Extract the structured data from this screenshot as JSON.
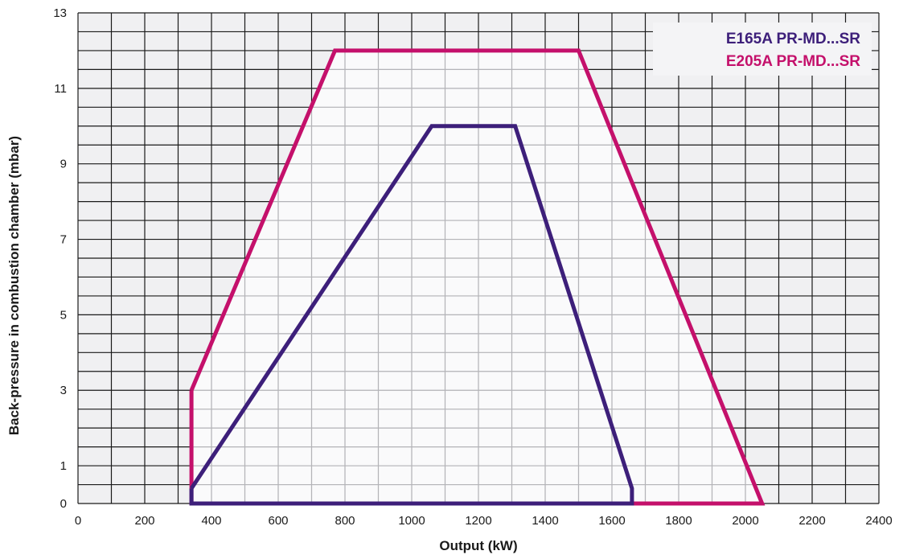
{
  "chart_data": {
    "type": "area",
    "xlabel": "Output (kW)",
    "ylabel": "Back-pressure in combustion chamber (mbar)",
    "xlim": [
      0,
      2400
    ],
    "ylim": [
      0,
      13
    ],
    "x_ticks": [
      0,
      200,
      400,
      600,
      800,
      1000,
      1200,
      1400,
      1600,
      1800,
      2000,
      2200,
      2400
    ],
    "x_tick_labels": [
      "0",
      "200",
      "400",
      "600",
      "800",
      "1000",
      "1200",
      "1400",
      "1600",
      "1800",
      "2000",
      "2200",
      "2400"
    ],
    "y_ticks": [
      0,
      1,
      3,
      5,
      7,
      9,
      11,
      13
    ],
    "y_tick_labels": [
      "0",
      "1",
      "3",
      "5",
      "7",
      "9",
      "11",
      "13"
    ],
    "grid": true,
    "legend_position": "top-right",
    "series": [
      {
        "name": "E165A PR-MD...SR",
        "color": "#3d1f7a",
        "x": [
          340,
          1060,
          1310,
          1660,
          1660,
          340,
          340
        ],
        "y": [
          0.4,
          10.0,
          10.0,
          0.4,
          0,
          0,
          0.4
        ]
      },
      {
        "name": "E205A PR-MD...SR",
        "color": "#c4106b",
        "x": [
          340,
          770,
          1500,
          2050,
          340,
          340
        ],
        "y": [
          3,
          12,
          12,
          0,
          0,
          3
        ]
      }
    ]
  }
}
